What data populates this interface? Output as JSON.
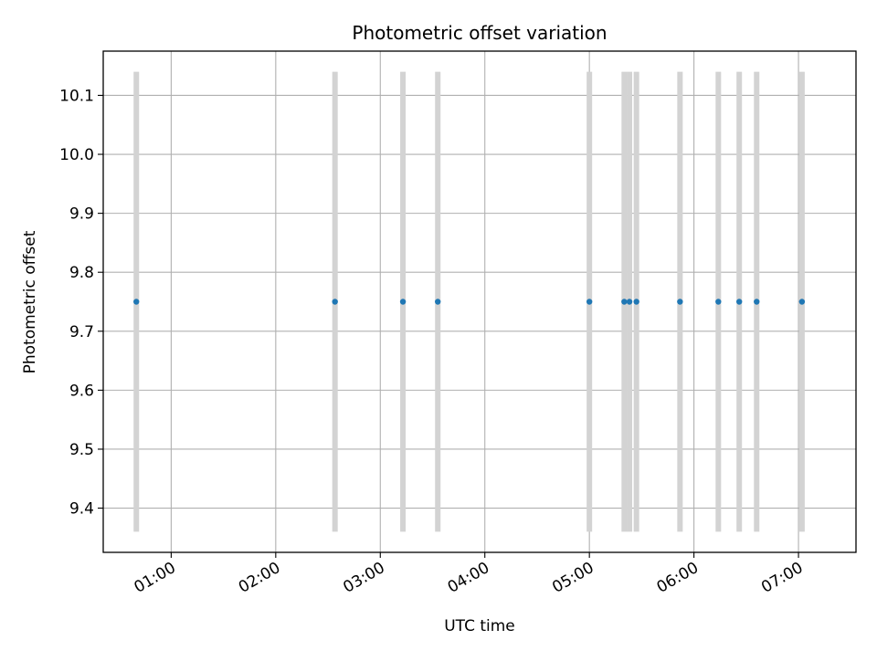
{
  "chart_data": {
    "type": "scatter",
    "title": "Photometric offset variation",
    "xlabel": "UTC time",
    "ylabel": "Photometric offset",
    "x_unit": "UTC time of day (HH:MM)",
    "x_tick_values": [
      "01:00",
      "02:00",
      "03:00",
      "04:00",
      "05:00",
      "06:00",
      "07:00"
    ],
    "x_tick_labels": [
      "01:00",
      "02:00",
      "03:00",
      "04:00",
      "05:00",
      "06:00",
      "07:00"
    ],
    "xlim": [
      "00:21",
      "07:33"
    ],
    "y_tick_values": [
      9.4,
      9.5,
      9.6,
      9.7,
      9.8,
      9.9,
      10.0,
      10.1
    ],
    "y_tick_labels": [
      "9.4",
      "9.5",
      "9.6",
      "9.7",
      "9.8",
      "9.9",
      "10.0",
      "10.1"
    ],
    "ylim": [
      9.325,
      10.175
    ],
    "grid": true,
    "colors": {
      "points": "#1f77b4",
      "errorbars": "#d3d3d3",
      "grid": "#b0b0b0",
      "axes": "#000000"
    },
    "points": [
      {
        "x": "00:40",
        "y": 9.75,
        "ylow": 9.36,
        "yhigh": 10.14
      },
      {
        "x": "02:34",
        "y": 9.75,
        "ylow": 9.36,
        "yhigh": 10.14
      },
      {
        "x": "03:13",
        "y": 9.75,
        "ylow": 9.36,
        "yhigh": 10.14
      },
      {
        "x": "03:33",
        "y": 9.75,
        "ylow": 9.36,
        "yhigh": 10.14
      },
      {
        "x": "05:00",
        "y": 9.75,
        "ylow": 9.36,
        "yhigh": 10.14
      },
      {
        "x": "05:20",
        "y": 9.75,
        "ylow": 9.36,
        "yhigh": 10.14
      },
      {
        "x": "05:23",
        "y": 9.75,
        "ylow": 9.36,
        "yhigh": 10.14
      },
      {
        "x": "05:27",
        "y": 9.75,
        "ylow": 9.36,
        "yhigh": 10.14
      },
      {
        "x": "05:52",
        "y": 9.75,
        "ylow": 9.36,
        "yhigh": 10.14
      },
      {
        "x": "06:14",
        "y": 9.75,
        "ylow": 9.36,
        "yhigh": 10.14
      },
      {
        "x": "06:26",
        "y": 9.75,
        "ylow": 9.36,
        "yhigh": 10.14
      },
      {
        "x": "06:36",
        "y": 9.75,
        "ylow": 9.36,
        "yhigh": 10.14
      },
      {
        "x": "07:02",
        "y": 9.75,
        "ylow": 9.36,
        "yhigh": 10.14
      }
    ]
  }
}
